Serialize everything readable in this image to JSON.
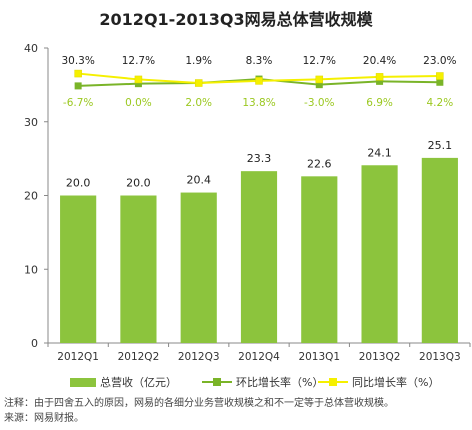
{
  "chart_data": {
    "type": "bar+line",
    "title": "2012Q1-2013Q3网易总体营收规模",
    "categories": [
      "2012Q1",
      "2012Q2",
      "2012Q3",
      "2012Q4",
      "2013Q1",
      "2013Q2",
      "2013Q3"
    ],
    "ylim": [
      0,
      40
    ],
    "yticks": [
      0,
      10,
      20,
      30,
      40
    ],
    "grid": false,
    "series": [
      {
        "name": "总营收（亿元）",
        "type": "bar",
        "values": [
          20.0,
          20.0,
          20.4,
          23.3,
          22.6,
          24.1,
          25.1
        ],
        "labels": [
          "20.0",
          "20.0",
          "20.4",
          "23.3",
          "22.6",
          "24.1",
          "25.1"
        ],
        "color": "#8cc43d"
      },
      {
        "name": "环比增长率（%）",
        "type": "line",
        "values": [
          -6.7,
          0.0,
          2.0,
          13.8,
          -3.0,
          6.9,
          4.2
        ],
        "labels": [
          "-6.7%",
          "0.0%",
          "2.0%",
          "13.8%",
          "-3.0%",
          "6.9%",
          "4.2%"
        ],
        "color": "#7ab428",
        "label_color": "#9bc820"
      },
      {
        "name": "同比增长率（%）",
        "type": "line",
        "values": [
          30.3,
          12.7,
          1.9,
          8.3,
          12.7,
          20.4,
          23.0
        ],
        "labels": [
          "30.3%",
          "12.7%",
          "1.9%",
          "8.3%",
          "12.7%",
          "20.4%",
          "23.0%"
        ],
        "color": "#f5f000",
        "label_color": "#222222"
      }
    ],
    "legend_position": "bottom"
  },
  "notes": {
    "note": "注释：由于四舍五入的原因，网易的各细分业务营收规模之和不一定等于总体营收规模。",
    "source": "来源：网易财报。"
  }
}
